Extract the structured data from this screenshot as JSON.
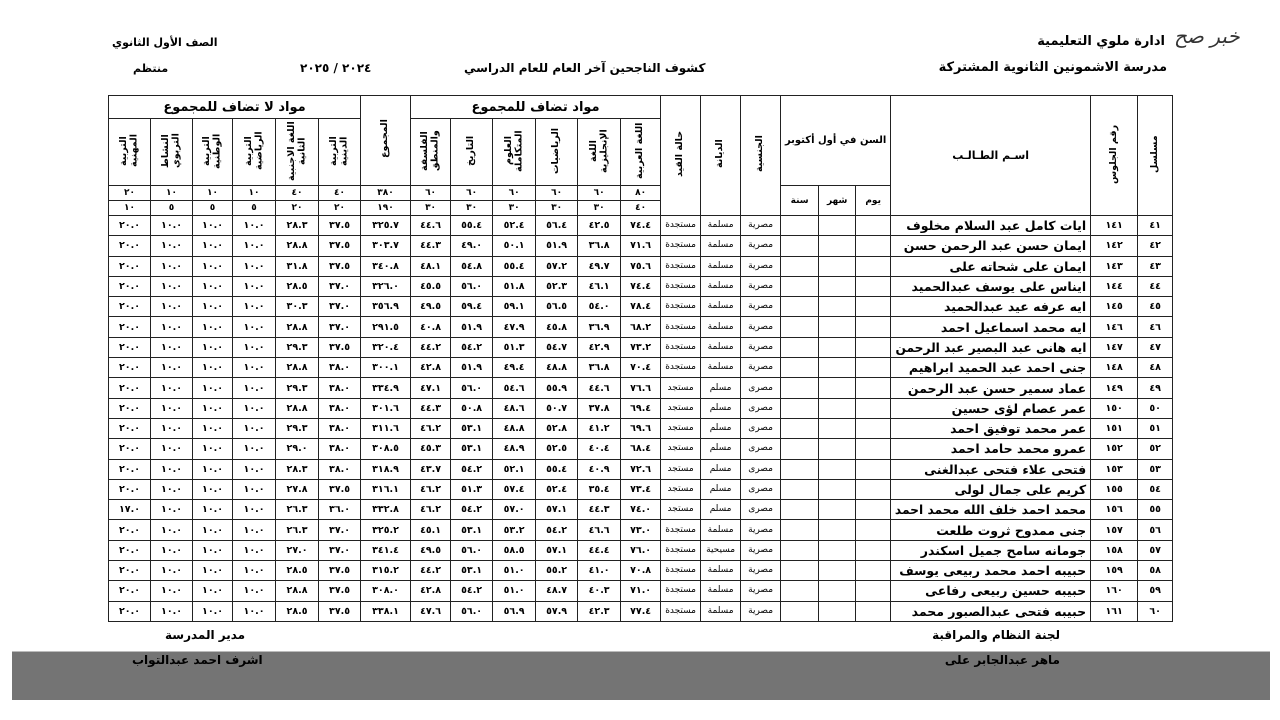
{
  "logo": "خبر صح",
  "header": {
    "directorate": "ادارة ملوي التعليمية",
    "school": "مدرسة الاشمونين الثانوية المشتركة",
    "title": "كشوف الناجحين آخر العام للعام الدراسي",
    "year": "٢٠٢٤ / ٢٠٢٥",
    "grade": "الصف الأول الثانوي",
    "type": "منتظم"
  },
  "columns": {
    "serial": "مسلسل",
    "seat": "رقم الجلوس",
    "name": "اسـم الطـالـب",
    "age": "السن في أول أكتوبر",
    "day": "يوم",
    "month": "شهر",
    "year": "سنة",
    "nationality": "الجنسية",
    "religion": "الديانة",
    "status": "حالة القيد",
    "added_group": "مواد تضاف للمجموع",
    "not_added_group": "مواد لا تضاف للمجموع",
    "subjects": [
      "اللغة العربية",
      "اللغة الإنجليزية",
      "الرياضيات",
      "العلوم المتكاملة",
      "التاريخ",
      "الفلسفة والمنطق",
      "المجموع",
      "التربية الدينية",
      "اللغة الأجنبية الثانية",
      "التربية الرياضية",
      "التربية الوطنية",
      "النشاط التربوي",
      "التربية المهنية"
    ],
    "max": [
      "٨٠",
      "٦٠",
      "٦٠",
      "٦٠",
      "٦٠",
      "٦٠",
      "٣٨٠",
      "٤٠",
      "٤٠",
      "١٠",
      "١٠",
      "١٠",
      "٢٠"
    ],
    "min": [
      "٤٠",
      "٣٠",
      "٣٠",
      "٣٠",
      "٣٠",
      "٣٠",
      "١٩٠",
      "٢٠",
      "٢٠",
      "٥",
      "٥",
      "٥",
      "١٠"
    ]
  },
  "rows": [
    {
      "serial": "٤١",
      "seat": "١٤١",
      "name": "ايات كامل عبد السلام مخلوف",
      "nationality": "مصرية",
      "religion": "مسلمة",
      "status": "مستجدة",
      "scores": [
        "٧٤.٤",
        "٤٢.٥",
        "٥٦.٤",
        "٥٢.٤",
        "٥٥.٤",
        "٤٤.٦",
        "٣٢٥.٧",
        "٣٧.٥",
        "٢٨.٣",
        "١٠.٠",
        "١٠.٠",
        "١٠.٠",
        "٢٠.٠"
      ]
    },
    {
      "serial": "٤٢",
      "seat": "١٤٢",
      "name": "ايمان حسن عبد الرحمن حسن",
      "nationality": "مصرية",
      "religion": "مسلمة",
      "status": "مستجدة",
      "scores": [
        "٧١.٦",
        "٣٦.٨",
        "٥١.٩",
        "٥٠.١",
        "٤٩.٠",
        "٤٤.٣",
        "٣٠٣.٧",
        "٣٧.٥",
        "٢٨.٨",
        "١٠.٠",
        "١٠.٠",
        "١٠.٠",
        "٢٠.٠"
      ]
    },
    {
      "serial": "٤٣",
      "seat": "١٤٣",
      "name": "ايمان على شحاته على",
      "nationality": "مصرية",
      "religion": "مسلمة",
      "status": "مستجدة",
      "scores": [
        "٧٥.٦",
        "٤٩.٧",
        "٥٧.٢",
        "٥٥.٤",
        "٥٤.٨",
        "٤٨.١",
        "٣٤٠.٨",
        "٣٧.٥",
        "٣١.٨",
        "١٠.٠",
        "١٠.٠",
        "١٠.٠",
        "٢٠.٠"
      ]
    },
    {
      "serial": "٤٤",
      "seat": "١٤٤",
      "name": "ايناس على يوسف عبدالحميد",
      "nationality": "مصرية",
      "religion": "مسلمة",
      "status": "مستجدة",
      "scores": [
        "٧٤.٤",
        "٤٦.١",
        "٥٢.٣",
        "٥١.٨",
        "٥٦.٠",
        "٤٥.٥",
        "٣٢٦.٠",
        "٣٧.٠",
        "٢٨.٥",
        "١٠.٠",
        "١٠.٠",
        "١٠.٠",
        "٢٠.٠"
      ]
    },
    {
      "serial": "٤٥",
      "seat": "١٤٥",
      "name": "ايه عرفه عيد عبدالحميد",
      "nationality": "مصرية",
      "religion": "مسلمة",
      "status": "مستجدة",
      "scores": [
        "٧٨.٤",
        "٥٤.٠",
        "٥٦.٥",
        "٥٩.١",
        "٥٩.٤",
        "٤٩.٥",
        "٣٥٦.٩",
        "٣٧.٠",
        "٣٠.٣",
        "١٠.٠",
        "١٠.٠",
        "١٠.٠",
        "٢٠.٠"
      ]
    },
    {
      "serial": "٤٦",
      "seat": "١٤٦",
      "name": "ايه محمد اسماعيل احمد",
      "nationality": "مصرية",
      "religion": "مسلمة",
      "status": "مستجدة",
      "scores": [
        "٦٨.٢",
        "٣٦.٩",
        "٤٥.٨",
        "٤٧.٩",
        "٥١.٩",
        "٤٠.٨",
        "٢٩١.٥",
        "٣٧.٠",
        "٢٨.٨",
        "١٠.٠",
        "١٠.٠",
        "١٠.٠",
        "٢٠.٠"
      ]
    },
    {
      "serial": "٤٧",
      "seat": "١٤٧",
      "name": "ايه هانى عبد البصير عبد الرحمن",
      "nationality": "مصرية",
      "religion": "مسلمة",
      "status": "مستجدة",
      "scores": [
        "٧٣.٢",
        "٤٢.٩",
        "٥٤.٧",
        "٥١.٣",
        "٥٤.٢",
        "٤٤.٢",
        "٣٢٠.٤",
        "٣٧.٥",
        "٢٩.٣",
        "١٠.٠",
        "١٠.٠",
        "١٠.٠",
        "٢٠.٠"
      ]
    },
    {
      "serial": "٤٨",
      "seat": "١٤٨",
      "name": "جنى احمد عبد الحميد ابراهيم",
      "nationality": "مصرية",
      "religion": "مسلمة",
      "status": "مستجدة",
      "scores": [
        "٧٠.٤",
        "٣٦.٨",
        "٤٨.٨",
        "٤٩.٤",
        "٥١.٩",
        "٤٢.٨",
        "٣٠٠.١",
        "٣٨.٠",
        "٢٨.٨",
        "١٠.٠",
        "١٠.٠",
        "١٠.٠",
        "٢٠.٠"
      ]
    },
    {
      "serial": "٤٩",
      "seat": "١٤٩",
      "name": "عماد سمير حسن عبد الرحمن",
      "nationality": "مصرى",
      "religion": "مسلم",
      "status": "مستجد",
      "scores": [
        "٧٦.٦",
        "٤٤.٦",
        "٥٥.٩",
        "٥٤.٦",
        "٥٦.٠",
        "٤٧.١",
        "٣٣٤.٩",
        "٣٨.٠",
        "٢٩.٣",
        "١٠.٠",
        "١٠.٠",
        "١٠.٠",
        "٢٠.٠"
      ]
    },
    {
      "serial": "٥٠",
      "seat": "١٥٠",
      "name": "عمر عصام لؤى حسين",
      "nationality": "مصرى",
      "religion": "مسلم",
      "status": "مستجد",
      "scores": [
        "٦٩.٤",
        "٣٧.٨",
        "٥٠.٧",
        "٤٨.٦",
        "٥٠.٨",
        "٤٤.٣",
        "٣٠١.٦",
        "٣٨.٠",
        "٢٨.٨",
        "١٠.٠",
        "١٠.٠",
        "١٠.٠",
        "٢٠.٠"
      ]
    },
    {
      "serial": "٥١",
      "seat": "١٥١",
      "name": "عمر محمد توفيق احمد",
      "nationality": "مصرى",
      "religion": "مسلم",
      "status": "مستجد",
      "scores": [
        "٦٩.٦",
        "٤١.٢",
        "٥٢.٨",
        "٤٨.٨",
        "٥٣.١",
        "٤٦.٢",
        "٣١١.٦",
        "٣٨.٠",
        "٢٩.٣",
        "١٠.٠",
        "١٠.٠",
        "١٠.٠",
        "٢٠.٠"
      ]
    },
    {
      "serial": "٥٢",
      "seat": "١٥٢",
      "name": "عمرو محمد حامد احمد",
      "nationality": "مصرى",
      "religion": "مسلم",
      "status": "مستجد",
      "scores": [
        "٦٨.٤",
        "٤٠.٤",
        "٥٢.٥",
        "٤٨.٩",
        "٥٣.١",
        "٤٥.٣",
        "٣٠٨.٥",
        "٣٨.٠",
        "٢٩.٠",
        "١٠.٠",
        "١٠.٠",
        "١٠.٠",
        "٢٠.٠"
      ]
    },
    {
      "serial": "٥٣",
      "seat": "١٥٣",
      "name": "فتحى علاء فتحى عبدالغنى",
      "nationality": "مصرى",
      "religion": "مسلم",
      "status": "مستجد",
      "scores": [
        "٧٢.٦",
        "٤٠.٩",
        "٥٥.٤",
        "٥٢.١",
        "٥٤.٢",
        "٤٣.٧",
        "٣١٨.٩",
        "٣٨.٠",
        "٢٨.٣",
        "١٠.٠",
        "١٠.٠",
        "١٠.٠",
        "٢٠.٠"
      ]
    },
    {
      "serial": "٥٤",
      "seat": "١٥٥",
      "name": "كريم على جمال لولى",
      "nationality": "مصرى",
      "religion": "مسلم",
      "status": "مستجد",
      "scores": [
        "٧٣.٤",
        "٣٥.٤",
        "٥٢.٤",
        "٥٧.٤",
        "٥١.٣",
        "٤٦.٢",
        "٣١٦.١",
        "٣٧.٥",
        "٢٧.٨",
        "١٠.٠",
        "١٠.٠",
        "١٠.٠",
        "٢٠.٠"
      ]
    },
    {
      "serial": "٥٥",
      "seat": "١٥٦",
      "name": "محمد احمد خلف الله محمد احمد",
      "nationality": "مصرى",
      "religion": "مسلم",
      "status": "مستجد",
      "scores": [
        "٧٤.٠",
        "٤٤.٣",
        "٥٧.١",
        "٥٧.٠",
        "٥٤.٢",
        "٤٦.٢",
        "٣٣٢.٨",
        "٣٦.٠",
        "٢٦.٣",
        "١٠.٠",
        "١٠.٠",
        "١٠.٠",
        "١٧.٠"
      ]
    },
    {
      "serial": "٥٦",
      "seat": "١٥٧",
      "name": "جنى ممدوح ثروت طلعت",
      "nationality": "مصرية",
      "religion": "مسلمة",
      "status": "مستجدة",
      "scores": [
        "٧٣.٠",
        "٤٦.٦",
        "٥٤.٢",
        "٥٣.٢",
        "٥٣.١",
        "٤٥.١",
        "٣٢٥.٢",
        "٣٧.٠",
        "٢٦.٣",
        "١٠.٠",
        "١٠.٠",
        "١٠.٠",
        "٢٠.٠"
      ]
    },
    {
      "serial": "٥٧",
      "seat": "١٥٨",
      "name": "جومانه سامح جميل اسكندر",
      "nationality": "مصرية",
      "religion": "مسيحية",
      "status": "مستجدة",
      "scores": [
        "٧٦.٠",
        "٤٤.٤",
        "٥٧.١",
        "٥٨.٥",
        "٥٦.٠",
        "٤٩.٥",
        "٣٤١.٤",
        "٣٧.٠",
        "٢٧.٠",
        "١٠.٠",
        "١٠.٠",
        "١٠.٠",
        "٢٠.٠"
      ]
    },
    {
      "serial": "٥٨",
      "seat": "١٥٩",
      "name": "حبيبه احمد محمد ربيعى يوسف",
      "nationality": "مصرية",
      "religion": "مسلمة",
      "status": "مستجدة",
      "scores": [
        "٧٠.٨",
        "٤١.٠",
        "٥٥.٢",
        "٥١.٠",
        "٥٣.١",
        "٤٤.٢",
        "٣١٥.٢",
        "٣٧.٥",
        "٢٨.٥",
        "١٠.٠",
        "١٠.٠",
        "١٠.٠",
        "٢٠.٠"
      ]
    },
    {
      "serial": "٥٩",
      "seat": "١٦٠",
      "name": "حبيبه حسين ربيعى رفاعى",
      "nationality": "مصرية",
      "religion": "مسلمة",
      "status": "مستجدة",
      "scores": [
        "٧١.٠",
        "٤٠.٣",
        "٤٨.٧",
        "٥١.٠",
        "٥٤.٢",
        "٤٢.٨",
        "٣٠٨.٠",
        "٣٧.٥",
        "٢٨.٨",
        "١٠.٠",
        "١٠.٠",
        "١٠.٠",
        "٢٠.٠"
      ]
    },
    {
      "serial": "٦٠",
      "seat": "١٦١",
      "name": "حبيبه فتحى عبدالصبور محمد",
      "nationality": "مصرية",
      "religion": "مسلمة",
      "status": "مستجدة",
      "scores": [
        "٧٧.٤",
        "٤٢.٣",
        "٥٧.٩",
        "٥٦.٩",
        "٥٦.٠",
        "٤٧.٦",
        "٣٣٨.١",
        "٣٧.٥",
        "٢٨.٥",
        "١٠.٠",
        "١٠.٠",
        "١٠.٠",
        "٢٠.٠"
      ]
    }
  ],
  "footer": {
    "committee_label": "لجنة النظام والمراقبة",
    "committee_name": "ماهر عبدالجابر على",
    "principal_label": "مدير المدرسة",
    "principal_name": "اشرف احمد عبدالتواب"
  }
}
